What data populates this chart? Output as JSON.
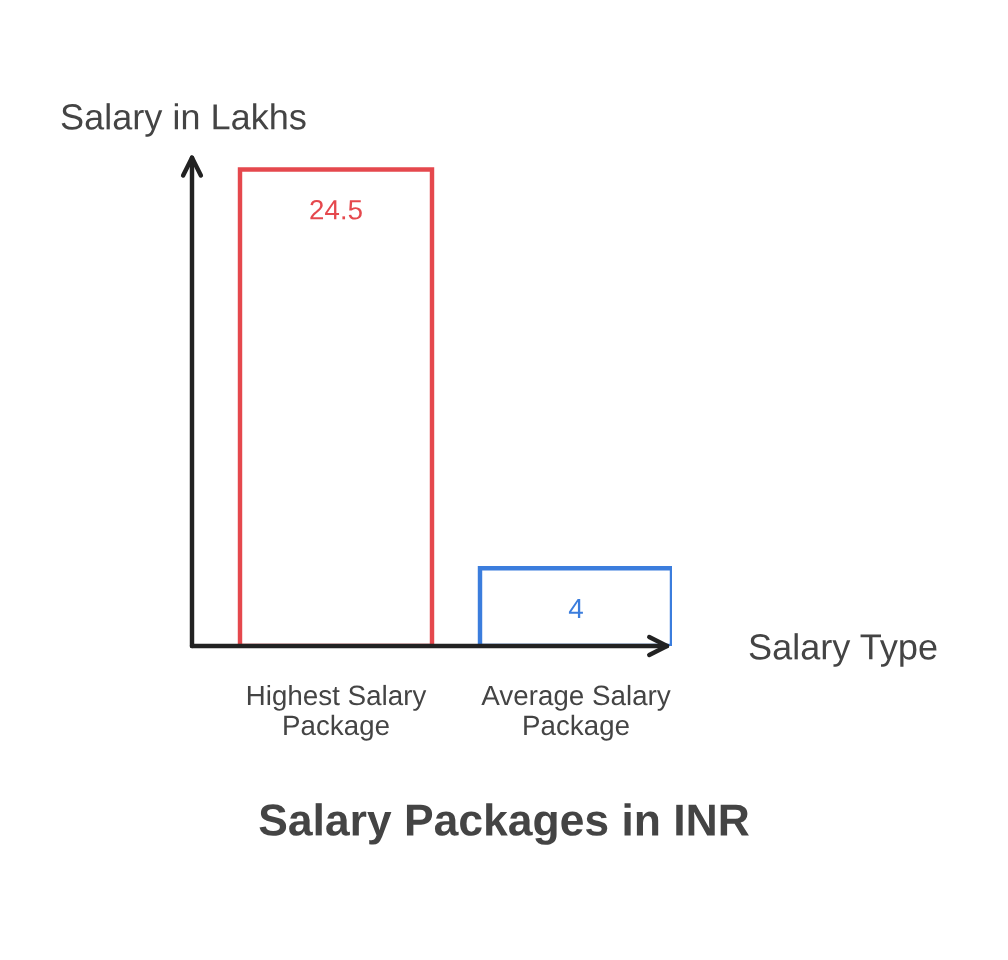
{
  "chart_data": {
    "type": "bar",
    "title": "Salary Packages in INR",
    "xlabel": "Salary Type",
    "ylabel": "Salary in Lakhs",
    "categories": [
      "Highest Salary Package",
      "Average Salary Package"
    ],
    "values": [
      24.5,
      4
    ],
    "colors": [
      "#e5484d",
      "#3b7ddd"
    ],
    "data_labels": true,
    "grid": false,
    "legend": false
  }
}
